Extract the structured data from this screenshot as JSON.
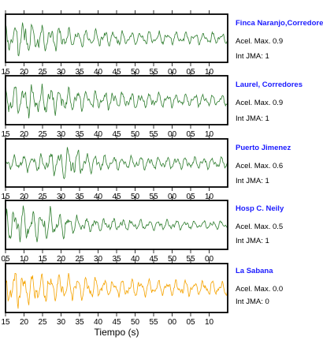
{
  "chart_data": {
    "type": "line",
    "xlabel": "Tiempo (s)",
    "panels": [
      {
        "station": "Finca Naranjo,Corredores",
        "acel_label": "Acel. Max. 0.9",
        "jma_label": "Int JMA: 1",
        "color": "#2e7d2e",
        "ticks": [
          "15",
          "20",
          "25",
          "30",
          "35",
          "40",
          "45",
          "50",
          "55",
          "00",
          "05",
          "10"
        ],
        "ticks_labeled": true,
        "seed": 11,
        "peak_x": 24,
        "peak_amp": 1.0,
        "envelope": [
          [
            0,
            0.75
          ],
          [
            25,
            0.8
          ],
          [
            100,
            0.45
          ],
          [
            200,
            0.32
          ],
          [
            282,
            0.3
          ]
        ]
      },
      {
        "station": "Laurel, Corredores",
        "acel_label": "Acel. Max. 0.9",
        "jma_label": "Int JMA: 1",
        "color": "#2e7d2e",
        "ticks": [
          "15",
          "20",
          "25",
          "30",
          "35",
          "40",
          "45",
          "50",
          "55",
          "00",
          "05",
          "10"
        ],
        "ticks_labeled": true,
        "seed": 23,
        "peak_x": 12,
        "peak_amp": 1.0,
        "envelope": [
          [
            0,
            0.85
          ],
          [
            30,
            0.8
          ],
          [
            100,
            0.5
          ],
          [
            200,
            0.35
          ],
          [
            282,
            0.3
          ]
        ]
      },
      {
        "station": "Puerto Jimenez",
        "acel_label": "Acel. Max. 0.6",
        "jma_label": "Int JMA: 1",
        "color": "#2e7d2e",
        "ticks": [
          "15",
          "20",
          "25",
          "30",
          "35",
          "40",
          "45",
          "50",
          "55",
          "00",
          "05",
          "10"
        ],
        "ticks_labeled": true,
        "seed": 37,
        "peak_x": 73,
        "peak_amp": 1.0,
        "envelope": [
          [
            0,
            0.3
          ],
          [
            60,
            0.55
          ],
          [
            75,
            0.8
          ],
          [
            120,
            0.4
          ],
          [
            200,
            0.3
          ],
          [
            282,
            0.28
          ]
        ]
      },
      {
        "station": "Hosp C. Neily",
        "acel_label": "Acel. Max. 0.5",
        "jma_label": "Int JMA: 1",
        "color": "#2e7d2e",
        "ticks": [
          "05",
          "10",
          "15",
          "20",
          "25",
          "30",
          "35",
          "40",
          "45",
          "50",
          "55",
          "00"
        ],
        "ticks_labeled": true,
        "seed": 51,
        "peak_x": 20,
        "peak_amp": 1.0,
        "envelope": [
          [
            0,
            0.9
          ],
          [
            60,
            0.75
          ],
          [
            100,
            0.35
          ],
          [
            180,
            0.25
          ],
          [
            282,
            0.2
          ]
        ]
      },
      {
        "station": "La Sabana",
        "acel_label": "Acel. Max. 0.0",
        "jma_label": "Int JMA: 0",
        "color": "#f5a300",
        "ticks": [
          "15",
          "20",
          "25",
          "30",
          "35",
          "40",
          "45",
          "50",
          "55",
          "00",
          "05",
          "10"
        ],
        "ticks_labeled": true,
        "seed": 67,
        "peak_x": 14,
        "peak_amp": 1.0,
        "envelope": [
          [
            0,
            0.9
          ],
          [
            40,
            0.75
          ],
          [
            120,
            0.5
          ],
          [
            200,
            0.38
          ],
          [
            282,
            0.35
          ]
        ]
      }
    ]
  }
}
